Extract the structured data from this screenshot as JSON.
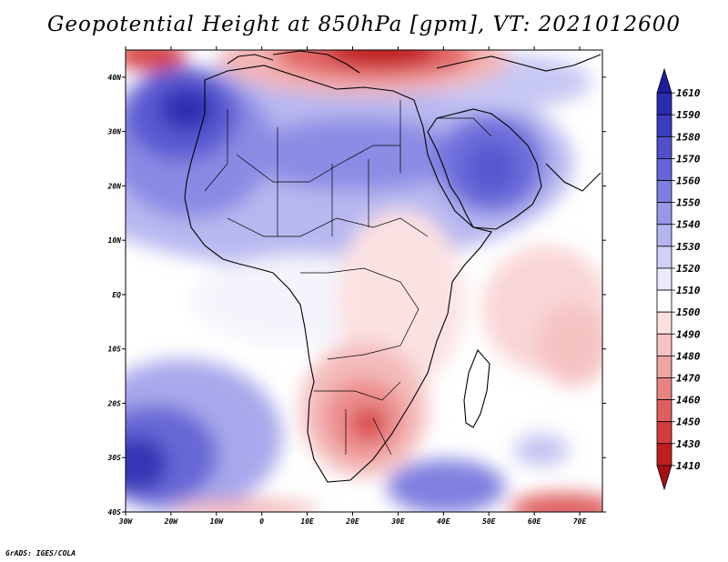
{
  "header": {
    "title": "Geopotential Height at 850hPa [gpm], VT: 2021012600"
  },
  "footer": {
    "credit": "GrADS: IGES/COLA"
  },
  "map": {
    "lon_range": [
      -30,
      75
    ],
    "lat_range": [
      -40,
      45
    ],
    "lon_ticks": [
      "30W",
      "20W",
      "10W",
      "0",
      "10E",
      "20E",
      "30E",
      "40E",
      "50E",
      "60E",
      "70E"
    ],
    "lat_ticks": [
      "40N",
      "30N",
      "20N",
      "10N",
      "EQ",
      "10S",
      "20S",
      "30S",
      "40S"
    ]
  },
  "colorbar": {
    "labels": [
      "1610",
      "1590",
      "1580",
      "1570",
      "1560",
      "1550",
      "1540",
      "1530",
      "1520",
      "1510",
      "1500",
      "1490",
      "1480",
      "1470",
      "1460",
      "1450",
      "1430",
      "1410"
    ],
    "colors": [
      "#1e1e9c",
      "#2b2bb0",
      "#3c3cc0",
      "#5050cc",
      "#6565d8",
      "#7e7ee0",
      "#9898e8",
      "#b4b4f0",
      "#d0d0f6",
      "#ebebfb",
      "#ffffff",
      "#fbe0e0",
      "#f7c4c4",
      "#f1a4a4",
      "#ea8282",
      "#e05e5e",
      "#d43c3c",
      "#c21e1e",
      "#a50f15"
    ]
  }
}
